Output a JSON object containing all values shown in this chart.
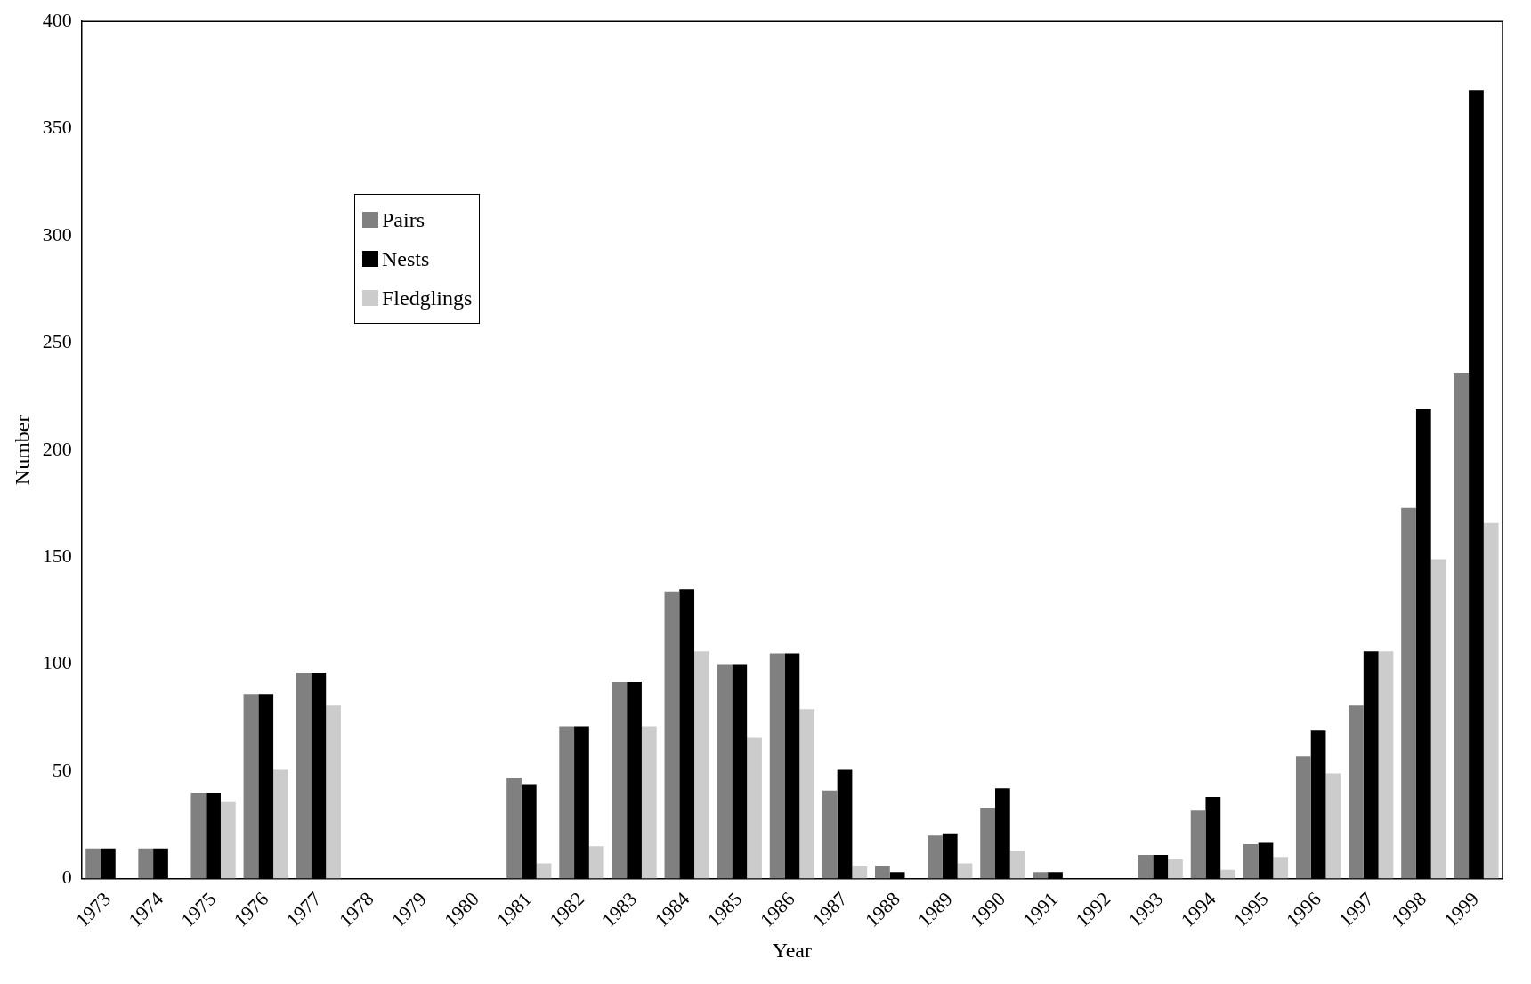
{
  "chart_data": {
    "type": "bar",
    "xlabel": "Year",
    "ylabel": "Number",
    "categories": [
      "1973",
      "1974",
      "1975",
      "1976",
      "1977",
      "1978",
      "1979",
      "1980",
      "1981",
      "1982",
      "1983",
      "1984",
      "1985",
      "1986",
      "1987",
      "1988",
      "1989",
      "1990",
      "1991",
      "1992",
      "1993",
      "1994",
      "1995",
      "1996",
      "1997",
      "1998",
      "1999"
    ],
    "series": [
      {
        "name": "Pairs",
        "color": "#808080",
        "values": [
          14,
          14,
          40,
          86,
          96,
          null,
          null,
          null,
          47,
          71,
          92,
          134,
          100,
          105,
          41,
          6,
          20,
          33,
          3,
          null,
          11,
          32,
          16,
          57,
          81,
          173,
          236
        ]
      },
      {
        "name": "Nests",
        "color": "#000000",
        "values": [
          14,
          14,
          40,
          86,
          96,
          null,
          null,
          null,
          44,
          71,
          92,
          135,
          100,
          105,
          51,
          3,
          21,
          42,
          3,
          null,
          11,
          38,
          17,
          69,
          106,
          219,
          368
        ]
      },
      {
        "name": "Fledglings",
        "color": "#cccccc",
        "values": [
          null,
          null,
          36,
          51,
          81,
          null,
          null,
          null,
          7,
          15,
          71,
          106,
          66,
          79,
          6,
          null,
          7,
          13,
          null,
          null,
          9,
          4,
          10,
          49,
          106,
          149,
          166
        ]
      }
    ],
    "ylim": [
      0,
      400
    ],
    "yticks": [
      0,
      50,
      100,
      150,
      200,
      250,
      300,
      350,
      400
    ],
    "grid": false,
    "legend": "top left"
  }
}
